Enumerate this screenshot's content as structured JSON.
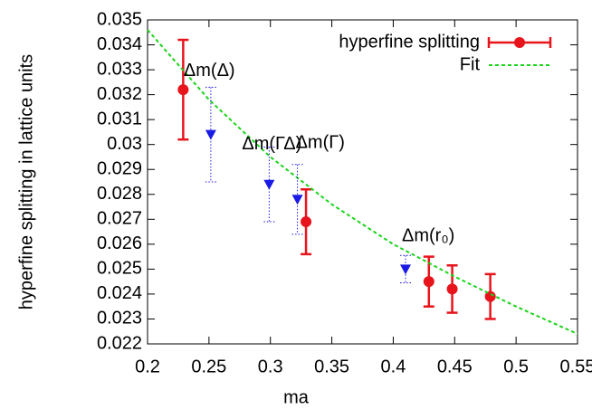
{
  "chart_data": {
    "type": "scatter",
    "x_label": "ma",
    "y_label": "hyperfine splitting in lattice units",
    "xlim": [
      0.2,
      0.55
    ],
    "xticks": [
      0.2,
      0.25,
      0.3,
      0.35,
      0.4,
      0.45,
      0.5,
      0.55
    ],
    "ylim": [
      0.022,
      0.035
    ],
    "yticks": [
      0.022,
      0.023,
      0.024,
      0.025,
      0.026,
      0.027,
      0.028,
      0.029,
      0.03,
      0.031,
      0.032,
      0.033,
      0.034,
      0.035
    ],
    "legend": "top-right",
    "series": [
      {
        "name": "hyperfine splitting",
        "color": "#e8141c",
        "marker": "circle",
        "x": [
          0.229,
          0.329,
          0.429,
          0.448,
          0.479
        ],
        "values": [
          0.0322,
          0.0269,
          0.0245,
          0.0242,
          0.0239
        ],
        "errors": [
          0.002,
          0.0013,
          0.001,
          0.00095,
          0.0009
        ]
      },
      {
        "name": "Fit",
        "color": "#19d419",
        "line": "dashed",
        "x": [
          0.2,
          0.25,
          0.3,
          0.35,
          0.4,
          0.45,
          0.5,
          0.55
        ],
        "values": [
          0.0346,
          0.0318,
          0.0295,
          0.0276,
          0.026,
          0.0247,
          0.0235,
          0.0224
        ]
      },
      {
        "color": "#1a1ae6",
        "marker": "triangle",
        "x": [
          0.2515,
          0.299,
          0.322,
          0.41
        ],
        "values": [
          0.0304,
          0.0284,
          0.0278,
          0.025
        ],
        "errors": [
          0.0019,
          0.0015,
          0.0014,
          0.00055
        ],
        "labels": [
          "Δm(Δ)",
          "Δm(ΓΔ)",
          "Δm(Γ)",
          "Δm(r₀)"
        ]
      }
    ]
  }
}
